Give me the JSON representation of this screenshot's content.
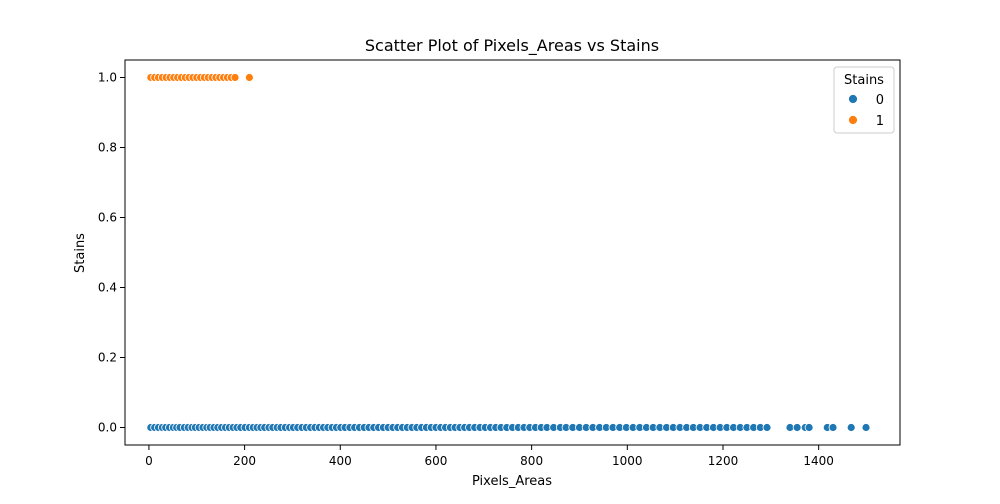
{
  "chart_data": {
    "type": "scatter",
    "title": "Scatter Plot of Pixels_Areas vs Stains",
    "xlabel": "Pixels_Areas",
    "ylabel": "Stains",
    "xlim": [
      -50,
      1570
    ],
    "ylim": [
      -0.05,
      1.05
    ],
    "xticks": [
      0,
      200,
      400,
      600,
      800,
      1000,
      1200,
      1400
    ],
    "xtick_labels": [
      "0",
      "200",
      "400",
      "600",
      "800",
      "1000",
      "1200",
      "1400"
    ],
    "yticks": [
      0.0,
      0.2,
      0.4,
      0.6,
      0.8,
      1.0
    ],
    "ytick_labels": [
      "0.0",
      "0.2",
      "0.4",
      "0.6",
      "0.8",
      "1.0"
    ],
    "grid": false,
    "legend": {
      "title": "Stains",
      "position": "top-right"
    },
    "series": [
      {
        "name": "0",
        "color": "#1f77b4",
        "points": [
          {
            "x": 4,
            "y": 0
          },
          {
            "x": 12,
            "y": 0
          },
          {
            "x": 20,
            "y": 0
          },
          {
            "x": 28,
            "y": 0
          },
          {
            "x": 35,
            "y": 0
          },
          {
            "x": 43,
            "y": 0
          },
          {
            "x": 51,
            "y": 0
          },
          {
            "x": 58,
            "y": 0
          },
          {
            "x": 65,
            "y": 0
          },
          {
            "x": 74,
            "y": 0
          },
          {
            "x": 82,
            "y": 0
          },
          {
            "x": 90,
            "y": 0
          },
          {
            "x": 97,
            "y": 0
          },
          {
            "x": 105,
            "y": 0
          },
          {
            "x": 113,
            "y": 0
          },
          {
            "x": 121,
            "y": 0
          },
          {
            "x": 128,
            "y": 0
          },
          {
            "x": 136,
            "y": 0
          },
          {
            "x": 144,
            "y": 0
          },
          {
            "x": 152,
            "y": 0
          },
          {
            "x": 160,
            "y": 0
          },
          {
            "x": 168,
            "y": 0
          },
          {
            "x": 176,
            "y": 0
          },
          {
            "x": 184,
            "y": 0
          },
          {
            "x": 192,
            "y": 0
          },
          {
            "x": 201,
            "y": 0
          },
          {
            "x": 210,
            "y": 0
          },
          {
            "x": 218,
            "y": 0
          },
          {
            "x": 226,
            "y": 0
          },
          {
            "x": 234,
            "y": 0
          },
          {
            "x": 242,
            "y": 0
          },
          {
            "x": 251,
            "y": 0
          },
          {
            "x": 259,
            "y": 0
          },
          {
            "x": 268,
            "y": 0
          },
          {
            "x": 276,
            "y": 0
          },
          {
            "x": 285,
            "y": 0
          },
          {
            "x": 294,
            "y": 0
          },
          {
            "x": 302,
            "y": 0
          },
          {
            "x": 311,
            "y": 0
          },
          {
            "x": 320,
            "y": 0
          },
          {
            "x": 329,
            "y": 0
          },
          {
            "x": 338,
            "y": 0
          },
          {
            "x": 347,
            "y": 0
          },
          {
            "x": 356,
            "y": 0
          },
          {
            "x": 365,
            "y": 0
          },
          {
            "x": 374,
            "y": 0
          },
          {
            "x": 383,
            "y": 0
          },
          {
            "x": 392,
            "y": 0
          },
          {
            "x": 401,
            "y": 0
          },
          {
            "x": 410,
            "y": 0
          },
          {
            "x": 420,
            "y": 0
          },
          {
            "x": 430,
            "y": 0
          },
          {
            "x": 440,
            "y": 0
          },
          {
            "x": 450,
            "y": 0
          },
          {
            "x": 460,
            "y": 0
          },
          {
            "x": 470,
            "y": 0
          },
          {
            "x": 480,
            "y": 0
          },
          {
            "x": 490,
            "y": 0
          },
          {
            "x": 500,
            "y": 0
          },
          {
            "x": 510,
            "y": 0
          },
          {
            "x": 520,
            "y": 0
          },
          {
            "x": 530,
            "y": 0
          },
          {
            "x": 540,
            "y": 0
          },
          {
            "x": 550,
            "y": 0
          },
          {
            "x": 560,
            "y": 0
          },
          {
            "x": 570,
            "y": 0
          },
          {
            "x": 580,
            "y": 0
          },
          {
            "x": 590,
            "y": 0
          },
          {
            "x": 600,
            "y": 0
          },
          {
            "x": 610,
            "y": 0
          },
          {
            "x": 620,
            "y": 0
          },
          {
            "x": 630,
            "y": 0
          },
          {
            "x": 640,
            "y": 0
          },
          {
            "x": 650,
            "y": 0
          },
          {
            "x": 660,
            "y": 0
          },
          {
            "x": 670,
            "y": 0
          },
          {
            "x": 681,
            "y": 0
          },
          {
            "x": 692,
            "y": 0
          },
          {
            "x": 703,
            "y": 0
          },
          {
            "x": 714,
            "y": 0
          },
          {
            "x": 725,
            "y": 0
          },
          {
            "x": 736,
            "y": 0
          },
          {
            "x": 748,
            "y": 0
          },
          {
            "x": 760,
            "y": 0
          },
          {
            "x": 772,
            "y": 0
          },
          {
            "x": 784,
            "y": 0
          },
          {
            "x": 796,
            "y": 0
          },
          {
            "x": 808,
            "y": 0
          },
          {
            "x": 820,
            "y": 0
          },
          {
            "x": 832,
            "y": 0
          },
          {
            "x": 846,
            "y": 0
          },
          {
            "x": 860,
            "y": 0
          },
          {
            "x": 872,
            "y": 0
          },
          {
            "x": 886,
            "y": 0
          },
          {
            "x": 900,
            "y": 0
          },
          {
            "x": 914,
            "y": 0
          },
          {
            "x": 928,
            "y": 0
          },
          {
            "x": 942,
            "y": 0
          },
          {
            "x": 956,
            "y": 0
          },
          {
            "x": 970,
            "y": 0
          },
          {
            "x": 984,
            "y": 0
          },
          {
            "x": 998,
            "y": 0
          },
          {
            "x": 1012,
            "y": 0
          },
          {
            "x": 1026,
            "y": 0
          },
          {
            "x": 1040,
            "y": 0
          },
          {
            "x": 1054,
            "y": 0
          },
          {
            "x": 1068,
            "y": 0
          },
          {
            "x": 1082,
            "y": 0
          },
          {
            "x": 1096,
            "y": 0
          },
          {
            "x": 1110,
            "y": 0
          },
          {
            "x": 1124,
            "y": 0
          },
          {
            "x": 1138,
            "y": 0
          },
          {
            "x": 1152,
            "y": 0
          },
          {
            "x": 1166,
            "y": 0
          },
          {
            "x": 1180,
            "y": 0
          },
          {
            "x": 1194,
            "y": 0
          },
          {
            "x": 1208,
            "y": 0
          },
          {
            "x": 1222,
            "y": 0
          },
          {
            "x": 1236,
            "y": 0
          },
          {
            "x": 1250,
            "y": 0
          },
          {
            "x": 1264,
            "y": 0
          },
          {
            "x": 1278,
            "y": 0
          },
          {
            "x": 1292,
            "y": 0
          },
          {
            "x": 1340,
            "y": 0
          },
          {
            "x": 1355,
            "y": 0
          },
          {
            "x": 1372,
            "y": 0
          },
          {
            "x": 1380,
            "y": 0
          },
          {
            "x": 1418,
            "y": 0
          },
          {
            "x": 1430,
            "y": 0
          },
          {
            "x": 1468,
            "y": 0
          },
          {
            "x": 1499,
            "y": 0
          }
        ]
      },
      {
        "name": "1",
        "color": "#ff7f0e",
        "points": [
          {
            "x": 4,
            "y": 1
          },
          {
            "x": 12,
            "y": 1
          },
          {
            "x": 20,
            "y": 1
          },
          {
            "x": 28,
            "y": 1
          },
          {
            "x": 36,
            "y": 1
          },
          {
            "x": 44,
            "y": 1
          },
          {
            "x": 52,
            "y": 1
          },
          {
            "x": 60,
            "y": 1
          },
          {
            "x": 68,
            "y": 1
          },
          {
            "x": 76,
            "y": 1
          },
          {
            "x": 84,
            "y": 1
          },
          {
            "x": 92,
            "y": 1
          },
          {
            "x": 100,
            "y": 1
          },
          {
            "x": 108,
            "y": 1
          },
          {
            "x": 116,
            "y": 1
          },
          {
            "x": 124,
            "y": 1
          },
          {
            "x": 132,
            "y": 1
          },
          {
            "x": 140,
            "y": 1
          },
          {
            "x": 148,
            "y": 1
          },
          {
            "x": 156,
            "y": 1
          },
          {
            "x": 164,
            "y": 1
          },
          {
            "x": 172,
            "y": 1
          },
          {
            "x": 180,
            "y": 1
          },
          {
            "x": 210,
            "y": 1
          }
        ]
      }
    ]
  }
}
